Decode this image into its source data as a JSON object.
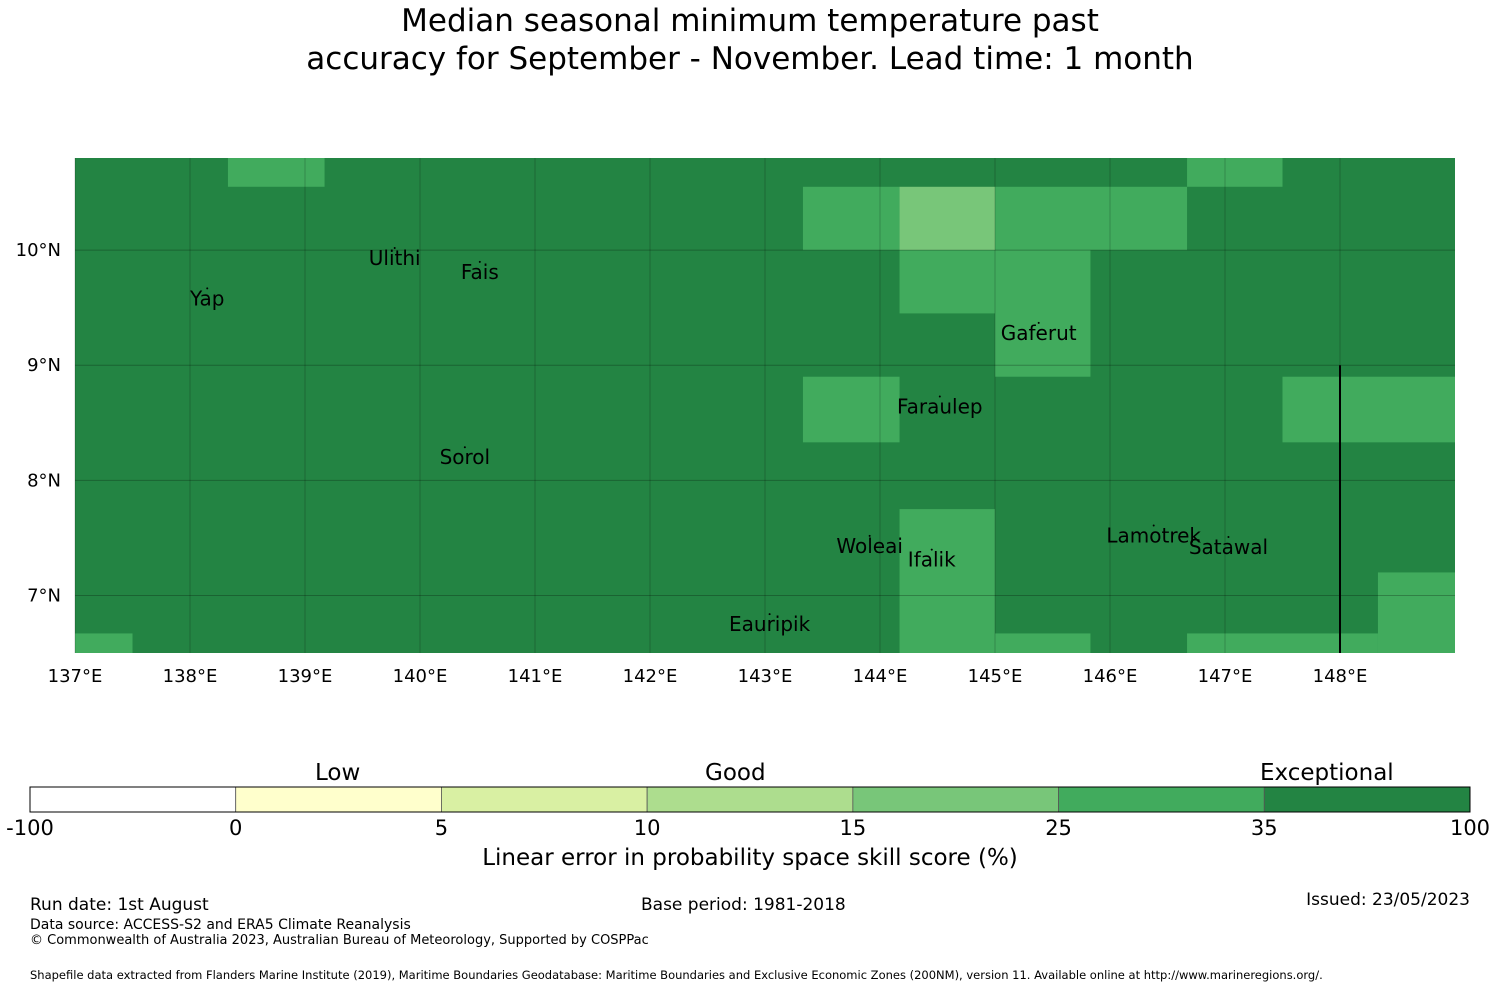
{
  "title": {
    "line1": "Median seasonal minimum temperature past",
    "line2": "accuracy for September - November. Lead time: 1 month"
  },
  "map": {
    "lon_range": [
      137,
      149
    ],
    "lat_range": [
      6.5,
      10.8
    ],
    "lon_ticks": [
      "137°E",
      "138°E",
      "139°E",
      "140°E",
      "141°E",
      "142°E",
      "143°E",
      "144°E",
      "145°E",
      "146°E",
      "147°E",
      "148°E"
    ],
    "lon_tick_values": [
      137,
      138,
      139,
      140,
      141,
      142,
      143,
      144,
      145,
      146,
      147,
      148
    ],
    "lat_ticks": [
      "10°N",
      "9°N",
      "8°N",
      "7°N"
    ],
    "lat_tick_values": [
      10,
      9,
      8,
      7
    ],
    "background_category": "35-100",
    "cells": [
      {
        "lon": [
          138.33,
          139.17
        ],
        "lat": [
          10.55,
          10.8
        ],
        "category": "25-35"
      },
      {
        "lon": [
          143.33,
          144.17
        ],
        "lat": [
          10.0,
          10.55
        ],
        "category": "25-35"
      },
      {
        "lon": [
          144.17,
          145.0
        ],
        "lat": [
          10.0,
          10.55
        ],
        "category": "15-25"
      },
      {
        "lon": [
          145.0,
          146.67
        ],
        "lat": [
          10.0,
          10.55
        ],
        "category": "25-35"
      },
      {
        "lon": [
          146.67,
          147.5
        ],
        "lat": [
          10.55,
          10.8
        ],
        "category": "25-35"
      },
      {
        "lon": [
          144.17,
          145.0
        ],
        "lat": [
          9.45,
          10.0
        ],
        "category": "25-35"
      },
      {
        "lon": [
          145.0,
          145.83
        ],
        "lat": [
          8.9,
          10.0
        ],
        "category": "25-35"
      },
      {
        "lon": [
          143.33,
          144.17
        ],
        "lat": [
          8.33,
          8.9
        ],
        "category": "25-35"
      },
      {
        "lon": [
          147.5,
          149.0
        ],
        "lat": [
          8.33,
          8.9
        ],
        "category": "25-35"
      },
      {
        "lon": [
          144.17,
          145.0
        ],
        "lat": [
          6.5,
          7.75
        ],
        "category": "25-35"
      },
      {
        "lon": [
          148.33,
          149.0
        ],
        "lat": [
          6.5,
          7.2
        ],
        "category": "25-35"
      },
      {
        "lon": [
          137.0,
          137.5
        ],
        "lat": [
          6.5,
          6.67
        ],
        "category": "25-35"
      },
      {
        "lon": [
          145.0,
          145.83
        ],
        "lat": [
          6.5,
          6.67
        ],
        "category": "25-35"
      },
      {
        "lon": [
          146.67,
          148.33
        ],
        "lat": [
          6.5,
          6.67
        ],
        "category": "25-35"
      }
    ],
    "places": [
      {
        "name": "Ulithi",
        "lon": 139.78,
        "lat": 9.87
      },
      {
        "name": "Fais",
        "lon": 140.52,
        "lat": 9.75
      },
      {
        "name": "Yap",
        "lon": 138.15,
        "lat": 9.52
      },
      {
        "name": "Gaferut",
        "lon": 145.38,
        "lat": 9.22
      },
      {
        "name": "Faraulep",
        "lon": 144.52,
        "lat": 8.58
      },
      {
        "name": "Sorol",
        "lon": 140.39,
        "lat": 8.14
      },
      {
        "name": "Woleai",
        "lon": 143.91,
        "lat": 7.37
      },
      {
        "name": "Ifalik",
        "lon": 144.45,
        "lat": 7.25
      },
      {
        "name": "Lamotrek",
        "lon": 146.38,
        "lat": 7.46
      },
      {
        "name": "Satawal",
        "lon": 147.03,
        "lat": 7.36
      },
      {
        "name": "Eauripik",
        "lon": 143.04,
        "lat": 6.69
      }
    ],
    "boundary_line": {
      "lon": 148.0,
      "lat": [
        6.5,
        9.0
      ]
    }
  },
  "legend": {
    "words": {
      "low": "Low",
      "good": "Good",
      "exceptional": "Exceptional"
    },
    "ticks": [
      "-100",
      "0",
      "5",
      "10",
      "15",
      "25",
      "35",
      "100"
    ],
    "bins": [
      {
        "range": "-100-0",
        "color": "#ffffff"
      },
      {
        "range": "0-5",
        "color": "#ffffcc"
      },
      {
        "range": "5-10",
        "color": "#d9f0a3"
      },
      {
        "range": "10-15",
        "color": "#addd8e"
      },
      {
        "range": "15-25",
        "color": "#78c679"
      },
      {
        "range": "25-35",
        "color": "#41ab5d"
      },
      {
        "range": "35-100",
        "color": "#238443"
      }
    ],
    "label": "Linear error in probability space skill score (%)"
  },
  "colors": {
    "35-100": "#238443",
    "25-35": "#41ab5d",
    "15-25": "#78c679"
  },
  "footer": {
    "run_date": "Run date: 1st August",
    "base_period": "Base period: 1981-2018",
    "issued": "Issued: 23/05/2023",
    "data_source": "Data source: ACCESS-S2 and ERA5 Climate Reanalysis",
    "copyright": "© Commonwealth of Australia 2023, Australian Bureau of Meteorology, Supported by COSPPac",
    "shapefile": "Shapefile data extracted from Flanders Marine Institute (2019), Maritime Boundaries Geodatabase: Maritime Boundaries and Exclusive Economic Zones (200NM), version 11. Available online at http://www.marineregions.org/."
  }
}
